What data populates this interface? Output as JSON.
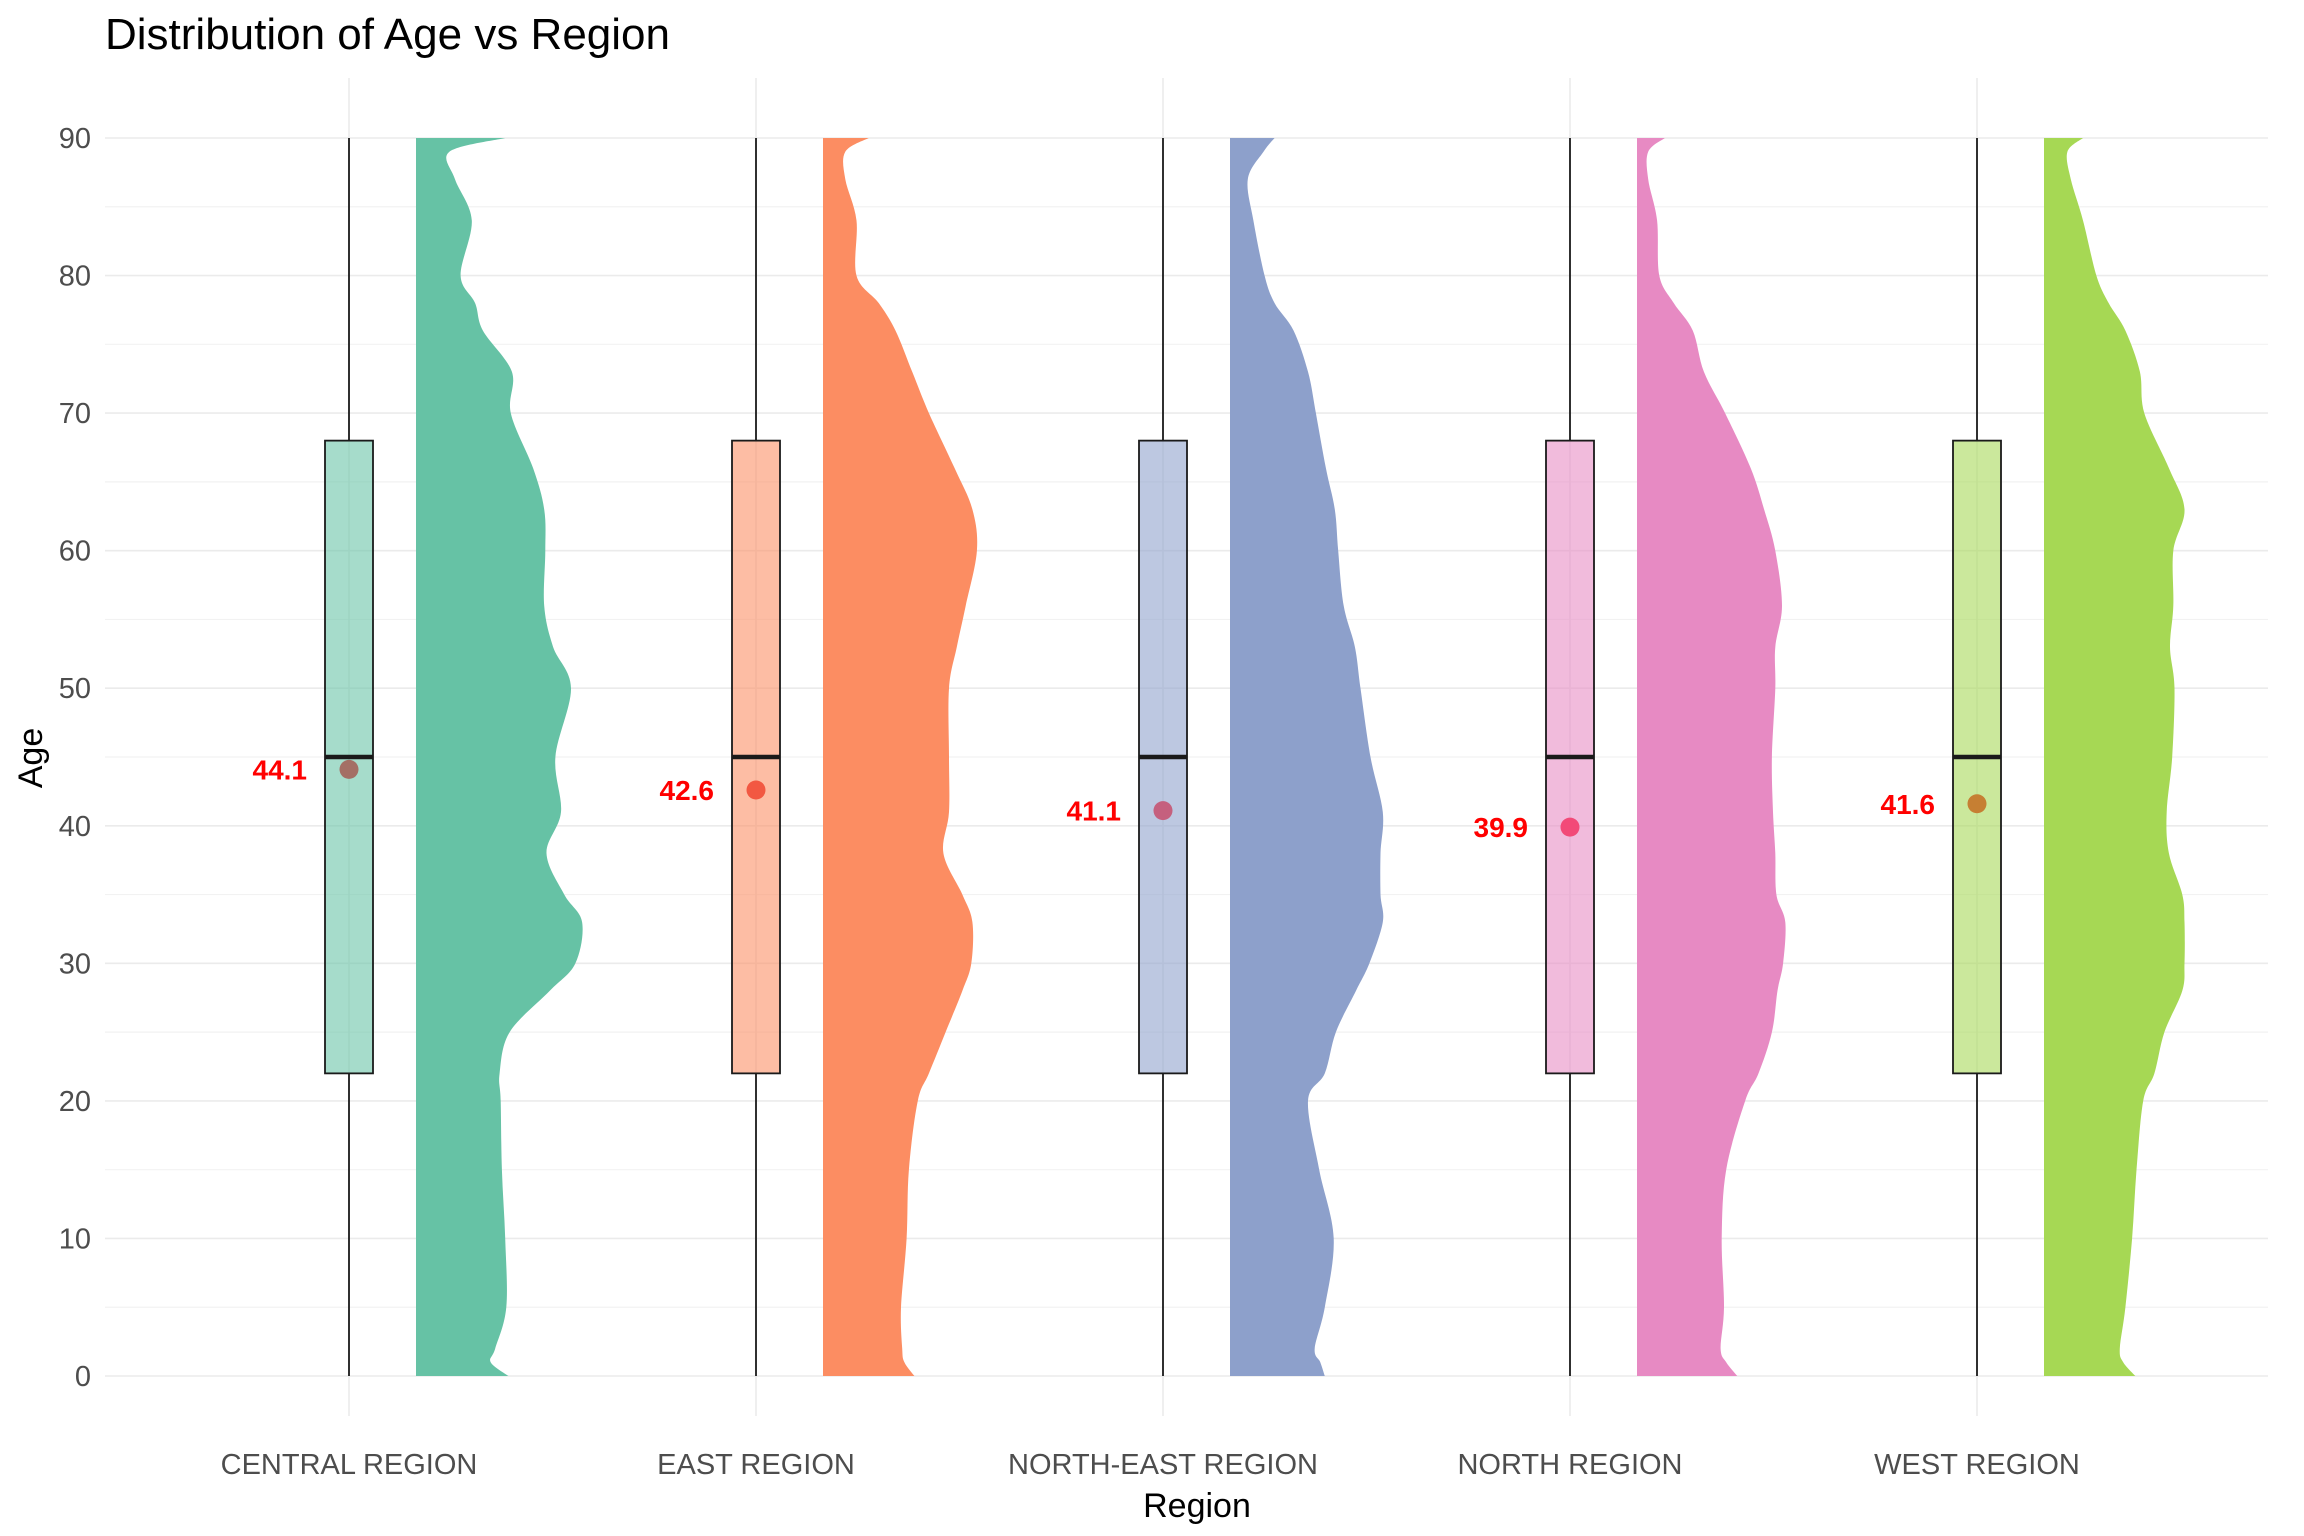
{
  "chart_data": {
    "type": "raincloud",
    "title": "Distribution of Age vs Region",
    "xlabel": "Region",
    "ylabel": "Age",
    "ylim": [
      0,
      90
    ],
    "yticks": [
      0,
      10,
      20,
      30,
      40,
      50,
      60,
      70,
      80,
      90
    ],
    "grid": true,
    "legend": "none",
    "categories": [
      "CENTRAL REGION",
      "EAST REGION",
      "NORTH-EAST REGION",
      "NORTH REGION",
      "WEST REGION"
    ],
    "colors": [
      "#66c2a5",
      "#fc8d62",
      "#8da0cb",
      "#e78ac3",
      "#a6d854"
    ],
    "boxplot": [
      {
        "region": "CENTRAL REGION",
        "min": 0,
        "q1": 22,
        "median": 45,
        "q3": 68,
        "max": 90
      },
      {
        "region": "EAST REGION",
        "min": 0,
        "q1": 22,
        "median": 45,
        "q3": 68,
        "max": 90
      },
      {
        "region": "NORTH-EAST REGION",
        "min": 0,
        "q1": 22,
        "median": 45,
        "q3": 68,
        "max": 90
      },
      {
        "region": "NORTH REGION",
        "min": 0,
        "q1": 22,
        "median": 45,
        "q3": 68,
        "max": 90
      },
      {
        "region": "WEST REGION",
        "min": 0,
        "q1": 22,
        "median": 45,
        "q3": 68,
        "max": 90
      }
    ],
    "means": [
      44.1,
      42.6,
      41.1,
      39.9,
      41.6
    ],
    "mean_labels": [
      "44.1",
      "42.6",
      "41.1",
      "39.9",
      "41.6"
    ],
    "mean_point_colors": [
      "#a46f65",
      "#f25842",
      "#c5607e",
      "#f24a78",
      "#c67f33"
    ],
    "density_ages": [
      0,
      1,
      2,
      5,
      10,
      15,
      20,
      22,
      25,
      28,
      30,
      33,
      35,
      38,
      41,
      45,
      50,
      53,
      56,
      60,
      63,
      66,
      70,
      73,
      76,
      78,
      80,
      84,
      87,
      89,
      90
    ],
    "density": [
      {
        "region": "CENTRAL REGION",
        "values": [
          0.083,
          0.067,
          0.071,
          0.081,
          0.08,
          0.077,
          0.076,
          0.075,
          0.084,
          0.12,
          0.143,
          0.149,
          0.133,
          0.117,
          0.13,
          0.125,
          0.139,
          0.123,
          0.115,
          0.116,
          0.115,
          0.105,
          0.085,
          0.086,
          0.06,
          0.053,
          0.04,
          0.05,
          0.035,
          0.03,
          0.08
        ]
      },
      {
        "region": "EAST REGION",
        "values": [
          0.082,
          0.073,
          0.071,
          0.07,
          0.075,
          0.077,
          0.085,
          0.095,
          0.11,
          0.125,
          0.133,
          0.134,
          0.125,
          0.108,
          0.113,
          0.113,
          0.113,
          0.12,
          0.128,
          0.138,
          0.134,
          0.118,
          0.095,
          0.08,
          0.065,
          0.05,
          0.03,
          0.03,
          0.02,
          0.02,
          0.041
        ]
      },
      {
        "region": "NORTH-EAST REGION",
        "values": [
          0.085,
          0.081,
          0.076,
          0.085,
          0.093,
          0.08,
          0.07,
          0.085,
          0.095,
          0.113,
          0.125,
          0.137,
          0.135,
          0.135,
          0.137,
          0.126,
          0.117,
          0.112,
          0.102,
          0.097,
          0.094,
          0.086,
          0.077,
          0.07,
          0.057,
          0.04,
          0.031,
          0.021,
          0.016,
          0.03,
          0.04
        ]
      },
      {
        "region": "NORTH REGION",
        "values": [
          0.09,
          0.08,
          0.075,
          0.078,
          0.076,
          0.08,
          0.097,
          0.109,
          0.121,
          0.126,
          0.131,
          0.133,
          0.125,
          0.124,
          0.122,
          0.121,
          0.124,
          0.124,
          0.13,
          0.124,
          0.114,
          0.102,
          0.079,
          0.06,
          0.05,
          0.033,
          0.02,
          0.018,
          0.01,
          0.01,
          0.025
        ]
      },
      {
        "region": "WEST REGION",
        "values": [
          0.082,
          0.071,
          0.068,
          0.073,
          0.079,
          0.083,
          0.089,
          0.099,
          0.108,
          0.124,
          0.126,
          0.126,
          0.124,
          0.112,
          0.11,
          0.115,
          0.117,
          0.113,
          0.116,
          0.116,
          0.126,
          0.112,
          0.09,
          0.086,
          0.073,
          0.058,
          0.047,
          0.035,
          0.024,
          0.021,
          0.035
        ]
      }
    ]
  }
}
